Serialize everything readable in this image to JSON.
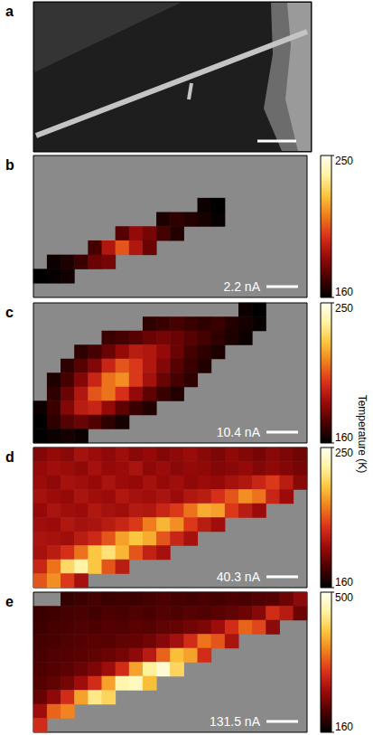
{
  "panel_a": {
    "label": "a"
  },
  "colorbar_label": "Temperature (K)",
  "chart_data": [
    {
      "type": "heatmap",
      "label": "b",
      "annotation": "2.2 nA",
      "tick_labels": false,
      "colorbar": {
        "range": [
          160,
          250
        ],
        "ticks": [
          160,
          250
        ]
      },
      "cells": [
        [
          null,
          null,
          null,
          null,
          null,
          null,
          null,
          null,
          null,
          null,
          null,
          null,
          null,
          null,
          null,
          null,
          null,
          null,
          null,
          null
        ],
        [
          null,
          null,
          null,
          null,
          null,
          null,
          null,
          null,
          null,
          null,
          null,
          null,
          null,
          null,
          null,
          null,
          null,
          null,
          null,
          null
        ],
        [
          null,
          null,
          null,
          null,
          null,
          null,
          null,
          null,
          null,
          null,
          null,
          null,
          null,
          null,
          null,
          null,
          null,
          null,
          null,
          null
        ],
        [
          null,
          null,
          null,
          null,
          null,
          null,
          null,
          null,
          null,
          null,
          null,
          null,
          162,
          160,
          null,
          null,
          null,
          null,
          null,
          null
        ],
        [
          null,
          null,
          null,
          null,
          null,
          null,
          null,
          null,
          null,
          165,
          168,
          166,
          164,
          161,
          null,
          null,
          null,
          null,
          null,
          null
        ],
        [
          null,
          null,
          null,
          null,
          null,
          null,
          175,
          185,
          180,
          172,
          166,
          null,
          null,
          null,
          null,
          null,
          null,
          null,
          null,
          null
        ],
        [
          null,
          null,
          null,
          null,
          172,
          190,
          205,
          190,
          178,
          null,
          null,
          null,
          null,
          null,
          null,
          null,
          null,
          null,
          null,
          null
        ],
        [
          null,
          162,
          165,
          170,
          178,
          180,
          null,
          null,
          null,
          null,
          null,
          null,
          null,
          null,
          null,
          null,
          null,
          null,
          null,
          null
        ],
        [
          160,
          161,
          163,
          null,
          null,
          null,
          null,
          null,
          null,
          null,
          null,
          null,
          null,
          null,
          null,
          null,
          null,
          null,
          null,
          null
        ],
        [
          null,
          null,
          null,
          null,
          null,
          null,
          null,
          null,
          null,
          null,
          null,
          null,
          null,
          null,
          null,
          null,
          null,
          null,
          null,
          null
        ]
      ]
    },
    {
      "type": "heatmap",
      "label": "c",
      "annotation": "10.4 nA",
      "tick_labels": false,
      "colorbar": {
        "range": [
          160,
          250
        ],
        "ticks": [
          160,
          250
        ]
      },
      "cells": [
        [
          null,
          null,
          null,
          null,
          null,
          null,
          null,
          null,
          null,
          null,
          null,
          null,
          null,
          null,
          null,
          162,
          160,
          null,
          null,
          null
        ],
        [
          null,
          null,
          null,
          null,
          null,
          null,
          null,
          null,
          168,
          170,
          172,
          170,
          168,
          170,
          166,
          164,
          161,
          null,
          null,
          null
        ],
        [
          null,
          null,
          null,
          null,
          null,
          170,
          172,
          175,
          178,
          180,
          178,
          175,
          172,
          168,
          165,
          162,
          null,
          null,
          null,
          null
        ],
        [
          null,
          null,
          null,
          168,
          172,
          178,
          185,
          192,
          190,
          185,
          178,
          172,
          168,
          165,
          null,
          null,
          null,
          null,
          null,
          null
        ],
        [
          null,
          null,
          168,
          175,
          182,
          195,
          205,
          200,
          190,
          182,
          175,
          170,
          166,
          null,
          null,
          null,
          null,
          null,
          null,
          null
        ],
        [
          null,
          165,
          172,
          182,
          195,
          210,
          215,
          200,
          188,
          178,
          172,
          168,
          null,
          null,
          null,
          null,
          null,
          null,
          null,
          null
        ],
        [
          null,
          168,
          178,
          190,
          205,
          210,
          198,
          185,
          176,
          170,
          166,
          null,
          null,
          null,
          null,
          null,
          null,
          null,
          null,
          null
        ],
        [
          162,
          170,
          182,
          192,
          195,
          185,
          176,
          170,
          166,
          null,
          null,
          null,
          null,
          null,
          null,
          null,
          null,
          null,
          null,
          null
        ],
        [
          160,
          168,
          175,
          178,
          174,
          168,
          164,
          null,
          null,
          null,
          null,
          null,
          null,
          null,
          null,
          null,
          null,
          null,
          null,
          null
        ],
        [
          160,
          162,
          164,
          162,
          null,
          null,
          null,
          null,
          null,
          null,
          null,
          null,
          null,
          null,
          null,
          null,
          null,
          null,
          null,
          null
        ]
      ]
    },
    {
      "type": "heatmap",
      "label": "d",
      "annotation": "40.3 nA",
      "tick_labels": false,
      "colorbar": {
        "range": [
          160,
          250
        ],
        "ticks": [
          160,
          250
        ]
      },
      "cells": [
        [
          182,
          185,
          183,
          188,
          186,
          184,
          187,
          183,
          185,
          182,
          184,
          186,
          183,
          181,
          184,
          182,
          180,
          183,
          181,
          179
        ],
        [
          185,
          187,
          186,
          184,
          188,
          185,
          186,
          189,
          184,
          186,
          183,
          185,
          184,
          182,
          183,
          185,
          182,
          184,
          182,
          180
        ],
        [
          186,
          184,
          188,
          187,
          185,
          189,
          186,
          185,
          188,
          185,
          187,
          184,
          186,
          185,
          188,
          190,
          195,
          200,
          192,
          183
        ],
        [
          188,
          186,
          185,
          189,
          187,
          186,
          190,
          188,
          187,
          189,
          186,
          190,
          192,
          198,
          205,
          215,
          210,
          195,
          186,
          null
        ],
        [
          185,
          189,
          187,
          186,
          190,
          188,
          187,
          191,
          190,
          195,
          200,
          210,
          220,
          218,
          200,
          192,
          186,
          null,
          null,
          null
        ],
        [
          187,
          186,
          190,
          188,
          189,
          192,
          195,
          200,
          212,
          222,
          215,
          200,
          192,
          187,
          null,
          null,
          null,
          null,
          null,
          null
        ],
        [
          189,
          188,
          187,
          192,
          196,
          205,
          218,
          225,
          220,
          205,
          195,
          188,
          null,
          null,
          null,
          null,
          null,
          null,
          null,
          null
        ],
        [
          188,
          192,
          198,
          210,
          225,
          232,
          222,
          205,
          194,
          188,
          null,
          null,
          null,
          null,
          null,
          null,
          null,
          null,
          null,
          null
        ],
        [
          195,
          210,
          230,
          238,
          225,
          205,
          192,
          null,
          null,
          null,
          null,
          null,
          null,
          null,
          null,
          null,
          null,
          null,
          null,
          null
        ],
        [
          205,
          215,
          200,
          188,
          null,
          null,
          null,
          null,
          null,
          null,
          null,
          null,
          null,
          null,
          null,
          null,
          null,
          null,
          null,
          null
        ]
      ]
    },
    {
      "type": "heatmap",
      "label": "e",
      "annotation": "131.5 nA",
      "tick_labels": false,
      "colorbar": {
        "range": [
          160,
          500
        ],
        "ticks": [
          160,
          500
        ]
      },
      "cells": [
        [
          null,
          null,
          195,
          200,
          205,
          198,
          202,
          200,
          205,
          210,
          206,
          203,
          208,
          205,
          210,
          207,
          212,
          215,
          230,
          250
        ],
        [
          198,
          202,
          205,
          208,
          204,
          210,
          207,
          212,
          209,
          214,
          211,
          216,
          213,
          218,
          222,
          230,
          245,
          300,
          280,
          230
        ],
        [
          200,
          205,
          208,
          212,
          210,
          215,
          213,
          218,
          216,
          222,
          225,
          232,
          240,
          260,
          300,
          340,
          320,
          250,
          null,
          null
        ],
        [
          205,
          208,
          212,
          215,
          218,
          216,
          222,
          225,
          232,
          245,
          265,
          300,
          350,
          330,
          270,
          null,
          null,
          null,
          null,
          null
        ],
        [
          208,
          212,
          215,
          218,
          222,
          228,
          235,
          250,
          280,
          340,
          400,
          380,
          300,
          null,
          null,
          null,
          null,
          null,
          null,
          null
        ],
        [
          210,
          215,
          220,
          228,
          240,
          260,
          300,
          380,
          450,
          480,
          420,
          null,
          null,
          null,
          null,
          null,
          null,
          null,
          null,
          null
        ],
        [
          215,
          222,
          235,
          260,
          300,
          380,
          460,
          470,
          400,
          null,
          null,
          null,
          null,
          null,
          null,
          null,
          null,
          null,
          null,
          null
        ],
        [
          225,
          250,
          300,
          380,
          440,
          420,
          null,
          null,
          null,
          null,
          null,
          null,
          null,
          null,
          null,
          null,
          null,
          null,
          null,
          null
        ],
        [
          260,
          340,
          360,
          null,
          null,
          null,
          null,
          null,
          null,
          null,
          null,
          null,
          null,
          null,
          null,
          null,
          null,
          null,
          null,
          null
        ],
        [
          300,
          null,
          null,
          null,
          null,
          null,
          null,
          null,
          null,
          null,
          null,
          null,
          null,
          null,
          null,
          null,
          null,
          null,
          null,
          null
        ]
      ]
    }
  ]
}
